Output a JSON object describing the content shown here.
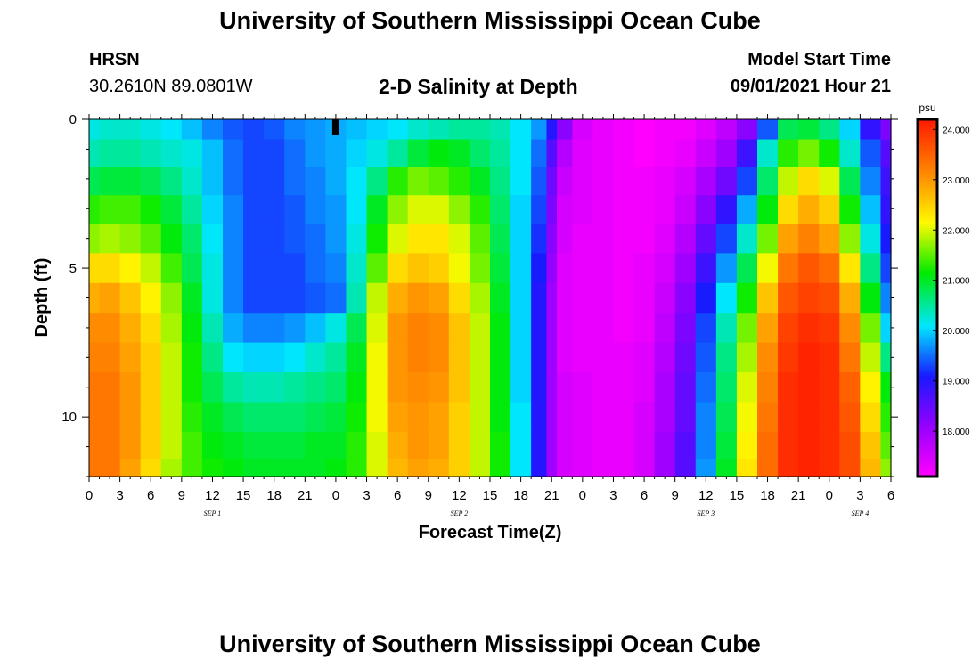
{
  "header": {
    "title": "University of Southern Mississippi Ocean Cube",
    "station": "HRSN",
    "latlon": "30.2610N  89.0801W",
    "subtitle": "2-D Salinity at Depth",
    "model_start_label": "Model Start Time",
    "model_start_value": "09/01/2021 Hour 21"
  },
  "footer": {
    "title": "University of Southern Mississippi Ocean Cube"
  },
  "chart_data": {
    "type": "heatmap",
    "title": "2-D Salinity at Depth",
    "xlabel": "Forecast Time(Z)",
    "ylabel": "Depth (ft)",
    "x_tick_labels": [
      "0",
      "3",
      "6",
      "9",
      "12",
      "15",
      "18",
      "21",
      "0",
      "3",
      "6",
      "9",
      "12",
      "15",
      "18",
      "21",
      "0",
      "3",
      "6",
      "9",
      "12",
      "15",
      "18",
      "21",
      "0",
      "3",
      "6"
    ],
    "x_range_hours": [
      0,
      78
    ],
    "date_labels": [
      {
        "label": "SEP 1",
        "hour": 12
      },
      {
        "label": "SEP 2",
        "hour": 36
      },
      {
        "label": "SEP 3",
        "hour": 60
      },
      {
        "label": "SEP 4",
        "hour": 75
      }
    ],
    "y_range_ft": [
      0,
      12
    ],
    "y_tick_labels": [
      "0",
      "5",
      "10"
    ],
    "y_tick_values": [
      0,
      5,
      10
    ],
    "depth_levels_ft": [
      0.25,
      1.1,
      2.1,
      3.0,
      4.0,
      5.0,
      6.0,
      7.0,
      8.0,
      9.0,
      10.0,
      11.0,
      11.8
    ],
    "hours": [
      0,
      2,
      4,
      6,
      8,
      10,
      12,
      14,
      16,
      18,
      20,
      22,
      24,
      26,
      28,
      30,
      32,
      34,
      36,
      38,
      40,
      42,
      44,
      45,
      46,
      48,
      50,
      52,
      54,
      56,
      58,
      60,
      62,
      64,
      66,
      68,
      70,
      72,
      74,
      76,
      78
    ],
    "salinity_psu": [
      [
        20.2,
        20.3,
        20.3,
        20.2,
        20.1,
        19.9,
        19.6,
        19.4,
        19.3,
        19.4,
        19.6,
        19.7,
        19.8,
        19.9,
        20.0,
        20.1,
        20.3,
        20.4,
        20.5,
        20.5,
        20.4,
        20.1,
        19.7,
        19.0,
        18.2,
        17.5,
        17.3,
        17.2,
        17.1,
        17.2,
        17.2,
        17.4,
        17.7,
        18.2,
        19.4,
        20.8,
        20.9,
        20.6,
        20.0,
        18.9,
        18.3
      ],
      [
        20.4,
        20.5,
        20.5,
        20.4,
        20.3,
        20.2,
        19.9,
        19.5,
        19.3,
        19.3,
        19.5,
        19.7,
        19.8,
        20.0,
        20.2,
        20.5,
        20.9,
        21.1,
        21.0,
        20.7,
        20.5,
        20.1,
        19.5,
        18.6,
        17.8,
        17.4,
        17.3,
        17.2,
        17.1,
        17.2,
        17.3,
        17.6,
        18.0,
        18.8,
        20.3,
        21.3,
        21.6,
        21.2,
        20.3,
        19.4,
        18.6
      ],
      [
        20.8,
        20.9,
        20.9,
        20.8,
        20.6,
        20.3,
        19.9,
        19.5,
        19.3,
        19.3,
        19.5,
        19.6,
        19.8,
        20.1,
        20.6,
        21.3,
        21.6,
        21.5,
        21.3,
        21.0,
        20.6,
        20.1,
        19.4,
        18.4,
        17.6,
        17.4,
        17.3,
        17.2,
        17.2,
        17.3,
        17.5,
        17.9,
        18.4,
        19.3,
        20.7,
        21.9,
        22.4,
        22.0,
        20.8,
        19.6,
        18.8
      ],
      [
        21.3,
        21.4,
        21.4,
        21.2,
        20.9,
        20.5,
        20.0,
        19.6,
        19.3,
        19.3,
        19.4,
        19.6,
        19.7,
        20.1,
        21.0,
        21.7,
        22.0,
        22.0,
        21.7,
        21.3,
        20.7,
        20.0,
        19.3,
        18.3,
        17.5,
        17.4,
        17.3,
        17.2,
        17.2,
        17.3,
        17.6,
        18.2,
        18.9,
        19.8,
        21.1,
        22.4,
        22.8,
        22.5,
        21.2,
        19.9,
        18.9
      ],
      [
        21.7,
        21.8,
        21.7,
        21.5,
        21.1,
        20.7,
        20.1,
        19.6,
        19.3,
        19.3,
        19.4,
        19.5,
        19.7,
        20.2,
        21.2,
        22.0,
        22.3,
        22.3,
        22.0,
        21.5,
        20.8,
        20.0,
        19.2,
        18.2,
        17.5,
        17.3,
        17.3,
        17.2,
        17.2,
        17.4,
        17.8,
        18.5,
        19.3,
        20.3,
        21.6,
        22.9,
        23.2,
        22.9,
        21.7,
        20.2,
        19.1
      ],
      [
        22.4,
        22.4,
        22.2,
        21.9,
        21.4,
        20.8,
        20.2,
        19.6,
        19.3,
        19.3,
        19.3,
        19.5,
        19.6,
        20.3,
        21.5,
        22.4,
        22.6,
        22.5,
        22.1,
        21.6,
        20.9,
        20.0,
        19.1,
        18.1,
        17.4,
        17.3,
        17.3,
        17.2,
        17.3,
        17.5,
        18.0,
        18.8,
        19.7,
        20.8,
        22.1,
        23.3,
        23.6,
        23.4,
        22.3,
        20.6,
        19.3
      ],
      [
        22.8,
        22.9,
        22.6,
        22.2,
        21.7,
        21.0,
        20.2,
        19.6,
        19.3,
        19.3,
        19.3,
        19.4,
        19.5,
        20.4,
        21.9,
        22.8,
        23.0,
        22.9,
        22.4,
        21.8,
        21.0,
        20.0,
        19.0,
        18.0,
        17.4,
        17.3,
        17.3,
        17.2,
        17.3,
        17.6,
        18.2,
        19.1,
        20.1,
        21.2,
        22.6,
        23.6,
        23.8,
        23.7,
        22.8,
        21.1,
        19.6
      ],
      [
        23.1,
        23.1,
        22.8,
        22.4,
        21.8,
        21.1,
        20.4,
        19.8,
        19.6,
        19.6,
        19.7,
        19.9,
        20.2,
        20.8,
        22.0,
        23.0,
        23.2,
        23.1,
        22.6,
        21.9,
        21.1,
        20.0,
        19.0,
        18.0,
        17.4,
        17.3,
        17.3,
        17.2,
        17.3,
        17.7,
        18.3,
        19.3,
        20.4,
        21.6,
        22.9,
        23.8,
        24.0,
        23.9,
        23.1,
        21.6,
        20.0
      ],
      [
        23.2,
        23.2,
        22.9,
        22.5,
        21.9,
        21.2,
        20.6,
        20.1,
        20.0,
        20.0,
        20.1,
        20.3,
        20.5,
        21.0,
        22.1,
        23.0,
        23.2,
        23.1,
        22.6,
        21.9,
        21.1,
        20.0,
        19.0,
        18.0,
        17.4,
        17.3,
        17.3,
        17.3,
        17.4,
        17.8,
        18.4,
        19.4,
        20.6,
        21.8,
        23.1,
        23.9,
        24.1,
        24.0,
        23.3,
        21.9,
        20.6
      ],
      [
        23.3,
        23.3,
        23.0,
        22.5,
        21.9,
        21.2,
        20.8,
        20.5,
        20.4,
        20.4,
        20.5,
        20.6,
        20.7,
        21.1,
        22.1,
        23.0,
        23.1,
        23.0,
        22.6,
        21.9,
        21.1,
        20.0,
        19.0,
        18.0,
        17.5,
        17.4,
        17.3,
        17.3,
        17.4,
        17.9,
        18.5,
        19.5,
        20.7,
        22.0,
        23.2,
        24.0,
        24.1,
        24.0,
        23.5,
        22.2,
        21.1
      ],
      [
        23.3,
        23.3,
        23.0,
        22.5,
        21.9,
        21.3,
        21.0,
        20.8,
        20.7,
        20.7,
        20.7,
        20.8,
        20.9,
        21.2,
        22.1,
        22.9,
        23.0,
        22.9,
        22.5,
        21.9,
        21.1,
        20.1,
        19.0,
        18.0,
        17.5,
        17.4,
        17.3,
        17.3,
        17.5,
        17.9,
        18.5,
        19.6,
        20.8,
        22.1,
        23.3,
        24.0,
        24.1,
        24.0,
        23.6,
        22.4,
        21.3
      ],
      [
        23.3,
        23.3,
        23.0,
        22.5,
        21.9,
        21.4,
        21.1,
        21.0,
        20.9,
        20.9,
        20.9,
        21.0,
        21.0,
        21.3,
        22.0,
        22.8,
        23.0,
        22.9,
        22.5,
        21.9,
        21.2,
        20.1,
        19.0,
        18.0,
        17.5,
        17.4,
        17.3,
        17.3,
        17.5,
        18.0,
        18.6,
        19.6,
        20.9,
        22.2,
        23.4,
        24.0,
        24.1,
        24.0,
        23.7,
        22.6,
        21.5
      ],
      [
        23.3,
        23.3,
        22.9,
        22.4,
        21.8,
        21.4,
        21.2,
        21.1,
        21.0,
        21.0,
        21.0,
        21.0,
        21.1,
        21.3,
        22.0,
        22.7,
        22.9,
        22.8,
        22.5,
        21.9,
        21.2,
        20.1,
        19.0,
        18.0,
        17.5,
        17.4,
        17.3,
        17.3,
        17.5,
        18.0,
        18.6,
        19.7,
        21.0,
        22.3,
        23.4,
        24.0,
        24.1,
        24.0,
        23.7,
        22.7,
        21.7
      ]
    ],
    "colorbar": {
      "unit": "psu",
      "min": 17.1,
      "max": 24.2,
      "tick_values": [
        18,
        19,
        20,
        21,
        22,
        23,
        24
      ],
      "tick_labels": [
        "18.000",
        "19.000",
        "20.000",
        "21.000",
        "22.000",
        "23.000",
        "24.000"
      ]
    },
    "current_time_marker_hour": 24,
    "colors": {
      "marker": "#000000",
      "axis": "#000000"
    }
  }
}
